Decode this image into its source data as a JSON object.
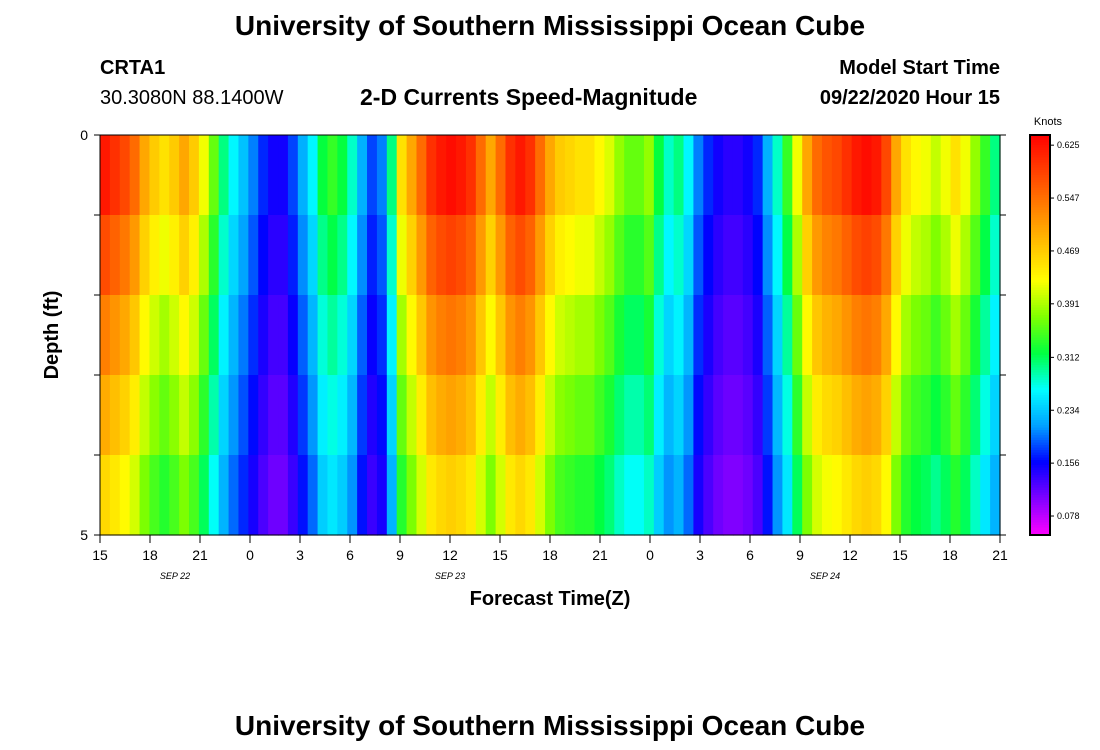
{
  "header": {
    "title_top": "University of Southern Mississippi Ocean Cube",
    "title_bottom": "University of Southern Mississippi Ocean Cube",
    "station_id": "CRTA1",
    "station_coords": "30.3080N 88.1400W",
    "plot_title": "2-D Currents Speed-Magnitude",
    "model_label": "Model Start Time",
    "model_time": "09/22/2020 Hour 15"
  },
  "colors": {
    "colormap": [
      "#ff00ff",
      "#8000ff",
      "#0000ff",
      "#00a0ff",
      "#00ffff",
      "#00ff40",
      "#80ff00",
      "#ffff00",
      "#ffc000",
      "#ff8000",
      "#ff4000",
      "#ff0000"
    ]
  },
  "chart_data": {
    "type": "heatmap",
    "xlabel": "Forecast Time(Z)",
    "ylabel": "Depth (ft)",
    "colorbar_label": "Knots",
    "vmin": 0.05,
    "vmax": 0.64,
    "colorbar_ticks": [
      "0.625",
      "0.547",
      "0.469",
      "0.391",
      "0.312",
      "0.234",
      "0.156",
      "0.078"
    ],
    "colorbar_tick_values": [
      0.625,
      0.547,
      0.469,
      0.391,
      0.312,
      0.234,
      0.156,
      0.078
    ],
    "y_tick_labels": [
      "0",
      "5"
    ],
    "y_range": [
      0,
      5
    ],
    "depth_levels": 5,
    "x_range_hours": [
      0,
      54
    ],
    "x_ticks": [
      "15",
      "18",
      "21",
      "0",
      "3",
      "6",
      "9",
      "12",
      "15",
      "18",
      "21",
      "0",
      "3",
      "6",
      "9",
      "12",
      "15",
      "18",
      "21"
    ],
    "x_tick_hours": [
      0,
      3,
      6,
      9,
      12,
      15,
      18,
      21,
      24,
      27,
      30,
      33,
      36,
      39,
      42,
      45,
      48,
      51,
      54
    ],
    "date_labels": [
      {
        "text": "SEP 22",
        "hour": 4.5
      },
      {
        "text": "SEP 23",
        "hour": 21
      },
      {
        "text": "SEP 24",
        "hour": 43.5
      }
    ],
    "surface_profile": [
      0.62,
      0.6,
      0.58,
      0.55,
      0.5,
      0.47,
      0.45,
      0.47,
      0.5,
      0.47,
      0.42,
      0.36,
      0.3,
      0.26,
      0.23,
      0.2,
      0.17,
      0.15,
      0.15,
      0.18,
      0.22,
      0.26,
      0.32,
      0.34,
      0.32,
      0.28,
      0.22,
      0.18,
      0.2,
      0.3,
      0.45,
      0.5,
      0.55,
      0.6,
      0.62,
      0.63,
      0.62,
      0.6,
      0.55,
      0.5,
      0.55,
      0.6,
      0.62,
      0.6,
      0.55,
      0.5,
      0.47,
      0.46,
      0.45,
      0.45,
      0.43,
      0.41,
      0.38,
      0.36,
      0.36,
      0.38,
      0.32,
      0.28,
      0.3,
      0.26,
      0.2,
      0.17,
      0.15,
      0.14,
      0.14,
      0.15,
      0.17,
      0.22,
      0.28,
      0.34,
      0.42,
      0.5,
      0.55,
      0.57,
      0.58,
      0.6,
      0.62,
      0.63,
      0.62,
      0.58,
      0.5,
      0.45,
      0.43,
      0.42,
      0.4,
      0.42,
      0.45,
      0.42,
      0.38,
      0.34,
      0.3
    ],
    "depth_factors": [
      1.0,
      0.93,
      0.86,
      0.8,
      0.74
    ]
  }
}
